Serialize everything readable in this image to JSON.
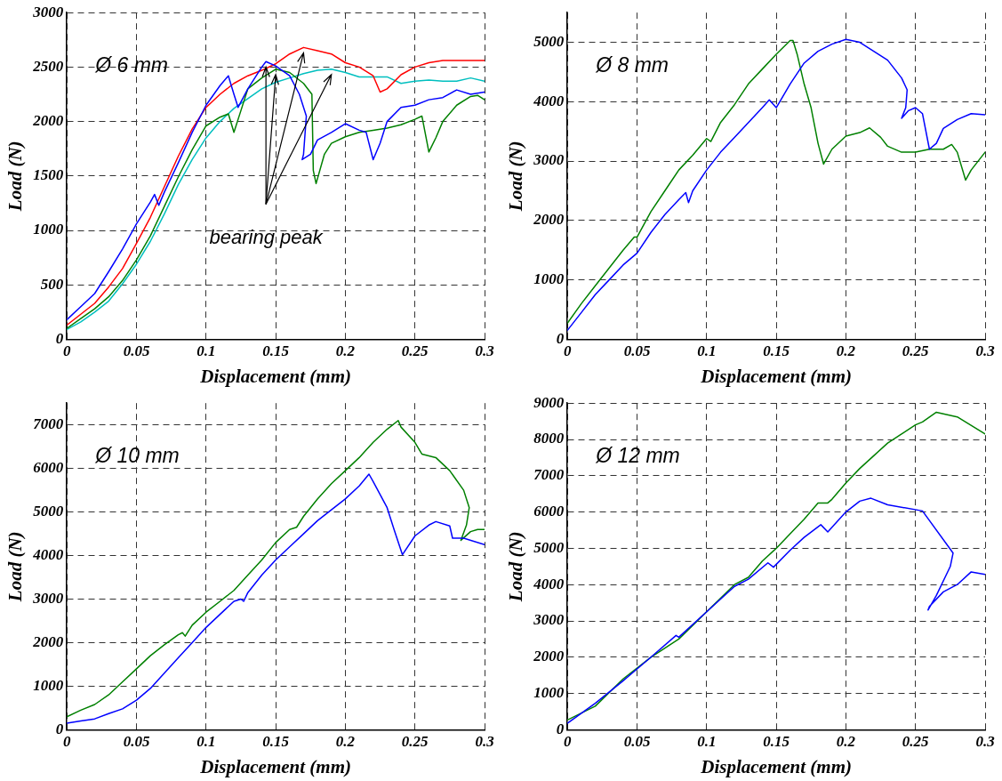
{
  "chart_data": [
    {
      "type": "line",
      "title": "Ø 6 mm",
      "xlabel": "Displacement (mm)",
      "ylabel": "Load (N)",
      "xlim": [
        0,
        0.3
      ],
      "xticks": [
        0,
        0.05,
        0.1,
        0.15,
        0.2,
        0.25,
        0.3
      ],
      "ylim": [
        0,
        3000
      ],
      "yticks": [
        0,
        500,
        1000,
        1500,
        2000,
        2500,
        3000
      ],
      "grid": true,
      "annotations": [
        {
          "text": "bearing peak",
          "x": 0.143,
          "y": 2550
        }
      ],
      "series": [
        {
          "color": "#0000ff",
          "x": [
            0,
            0.01,
            0.02,
            0.03,
            0.04,
            0.05,
            0.06,
            0.063,
            0.066,
            0.07,
            0.08,
            0.09,
            0.1,
            0.11,
            0.116,
            0.12,
            0.123,
            0.13,
            0.14,
            0.143,
            0.15,
            0.16,
            0.167,
            0.172,
            0.17,
            0.169,
            0.175,
            0.18,
            0.19,
            0.2,
            0.21,
            0.215,
            0.22,
            0.225,
            0.23,
            0.24,
            0.25,
            0.26,
            0.27,
            0.28,
            0.29,
            0.3
          ],
          "values": [
            180,
            300,
            420,
            620,
            830,
            1060,
            1260,
            1330,
            1230,
            1350,
            1620,
            1900,
            2150,
            2330,
            2420,
            2250,
            2130,
            2300,
            2500,
            2550,
            2510,
            2420,
            2250,
            2050,
            1700,
            1650,
            1700,
            1830,
            1900,
            1980,
            1920,
            1900,
            1650,
            1800,
            2000,
            2130,
            2150,
            2200,
            2220,
            2290,
            2250,
            2270
          ]
        },
        {
          "color": "#ff0000",
          "x": [
            0,
            0.01,
            0.02,
            0.03,
            0.04,
            0.05,
            0.06,
            0.07,
            0.08,
            0.09,
            0.1,
            0.11,
            0.12,
            0.13,
            0.14,
            0.15,
            0.16,
            0.17,
            0.18,
            0.19,
            0.2,
            0.21,
            0.22,
            0.225,
            0.23,
            0.24,
            0.25,
            0.26,
            0.27,
            0.28,
            0.29,
            0.3
          ],
          "values": [
            130,
            230,
            330,
            480,
            650,
            880,
            1120,
            1400,
            1680,
            1930,
            2130,
            2250,
            2350,
            2420,
            2470,
            2530,
            2620,
            2680,
            2650,
            2620,
            2540,
            2500,
            2420,
            2270,
            2300,
            2430,
            2500,
            2540,
            2560,
            2560,
            2560,
            2560
          ]
        },
        {
          "color": "#008000",
          "x": [
            0,
            0.01,
            0.02,
            0.03,
            0.04,
            0.05,
            0.06,
            0.07,
            0.08,
            0.09,
            0.1,
            0.11,
            0.116,
            0.12,
            0.125,
            0.13,
            0.14,
            0.15,
            0.16,
            0.17,
            0.176,
            0.177,
            0.179,
            0.185,
            0.19,
            0.2,
            0.21,
            0.22,
            0.23,
            0.24,
            0.25,
            0.255,
            0.26,
            0.265,
            0.27,
            0.28,
            0.29,
            0.295,
            0.3
          ],
          "values": [
            100,
            190,
            280,
            390,
            540,
            730,
            950,
            1220,
            1490,
            1740,
            1960,
            2040,
            2070,
            1900,
            2100,
            2300,
            2400,
            2480,
            2450,
            2350,
            2250,
            1550,
            1430,
            1700,
            1800,
            1860,
            1900,
            1920,
            1940,
            1970,
            2020,
            2050,
            1720,
            1850,
            2000,
            2150,
            2230,
            2240,
            2200
          ]
        },
        {
          "color": "#00bfbf",
          "x": [
            0,
            0.01,
            0.02,
            0.03,
            0.04,
            0.05,
            0.06,
            0.07,
            0.08,
            0.09,
            0.1,
            0.11,
            0.12,
            0.13,
            0.14,
            0.15,
            0.16,
            0.17,
            0.18,
            0.19,
            0.2,
            0.21,
            0.22,
            0.23,
            0.24,
            0.25,
            0.26,
            0.27,
            0.28,
            0.29,
            0.3
          ],
          "values": [
            90,
            160,
            250,
            350,
            510,
            690,
            900,
            1150,
            1420,
            1650,
            1850,
            2000,
            2120,
            2210,
            2300,
            2360,
            2400,
            2440,
            2470,
            2480,
            2450,
            2410,
            2410,
            2410,
            2350,
            2370,
            2380,
            2370,
            2370,
            2400,
            2370
          ]
        }
      ]
    },
    {
      "type": "line",
      "title": "Ø 8 mm",
      "xlabel": "Displacement (mm)",
      "ylabel": "Load (N)",
      "xlim": [
        0,
        0.3
      ],
      "xticks": [
        0,
        0.05,
        0.1,
        0.15,
        0.2,
        0.25,
        0.3
      ],
      "ylim": [
        0,
        5500
      ],
      "yticks": [
        0,
        1000,
        2000,
        3000,
        4000,
        5000
      ],
      "grid": true,
      "series": [
        {
          "color": "#0000ff",
          "x": [
            0,
            0.01,
            0.02,
            0.03,
            0.04,
            0.05,
            0.06,
            0.07,
            0.08,
            0.085,
            0.087,
            0.09,
            0.1,
            0.11,
            0.12,
            0.13,
            0.14,
            0.145,
            0.15,
            0.16,
            0.17,
            0.18,
            0.19,
            0.2,
            0.21,
            0.22,
            0.23,
            0.24,
            0.244,
            0.243,
            0.24,
            0.245,
            0.25,
            0.255,
            0.26,
            0.265,
            0.27,
            0.28,
            0.29,
            0.3
          ],
          "values": [
            150,
            450,
            750,
            1000,
            1250,
            1450,
            1800,
            2100,
            2350,
            2470,
            2300,
            2500,
            2850,
            3150,
            3400,
            3650,
            3900,
            4030,
            3900,
            4300,
            4650,
            4850,
            4970,
            5050,
            5000,
            4850,
            4700,
            4400,
            4200,
            3900,
            3720,
            3850,
            3900,
            3800,
            3200,
            3300,
            3550,
            3700,
            3800,
            3780
          ]
        },
        {
          "color": "#008000",
          "x": [
            0,
            0.01,
            0.02,
            0.03,
            0.04,
            0.048,
            0.05,
            0.06,
            0.07,
            0.08,
            0.09,
            0.1,
            0.103,
            0.11,
            0.12,
            0.13,
            0.14,
            0.15,
            0.16,
            0.162,
            0.165,
            0.17,
            0.175,
            0.18,
            0.184,
            0.19,
            0.2,
            0.21,
            0.217,
            0.225,
            0.23,
            0.24,
            0.25,
            0.26,
            0.27,
            0.276,
            0.28,
            0.286,
            0.29,
            0.3
          ],
          "values": [
            270,
            600,
            900,
            1200,
            1500,
            1720,
            1720,
            2150,
            2500,
            2850,
            3100,
            3380,
            3330,
            3650,
            3950,
            4300,
            4550,
            4800,
            5030,
            5030,
            4800,
            4300,
            3900,
            3300,
            2950,
            3200,
            3420,
            3480,
            3560,
            3400,
            3250,
            3150,
            3150,
            3200,
            3200,
            3280,
            3150,
            2680,
            2850,
            3150
          ]
        }
      ]
    },
    {
      "type": "line",
      "title": "Ø 10 mm",
      "xlabel": "Displacement (mm)",
      "ylabel": "Load (N)",
      "xlim": [
        0,
        0.3
      ],
      "xticks": [
        0,
        0.05,
        0.1,
        0.15,
        0.2,
        0.25,
        0.3
      ],
      "ylim": [
        0,
        7500
      ],
      "yticks": [
        0,
        1000,
        2000,
        3000,
        4000,
        5000,
        6000,
        7000
      ],
      "grid": true,
      "series": [
        {
          "color": "#0000ff",
          "x": [
            0,
            0.01,
            0.02,
            0.03,
            0.04,
            0.05,
            0.06,
            0.07,
            0.08,
            0.09,
            0.1,
            0.11,
            0.12,
            0.125,
            0.127,
            0.13,
            0.14,
            0.15,
            0.16,
            0.17,
            0.18,
            0.19,
            0.2,
            0.21,
            0.217,
            0.22,
            0.23,
            0.235,
            0.241,
            0.25,
            0.26,
            0.265,
            0.275,
            0.277,
            0.285,
            0.3
          ],
          "values": [
            150,
            200,
            250,
            370,
            480,
            680,
            950,
            1300,
            1650,
            2000,
            2350,
            2650,
            2950,
            3000,
            2950,
            3150,
            3550,
            3900,
            4200,
            4500,
            4800,
            5050,
            5300,
            5600,
            5870,
            5700,
            5100,
            4600,
            4020,
            4450,
            4700,
            4780,
            4680,
            4400,
            4400,
            4250
          ]
        },
        {
          "color": "#008000",
          "x": [
            0,
            0.01,
            0.02,
            0.03,
            0.04,
            0.05,
            0.06,
            0.07,
            0.08,
            0.083,
            0.085,
            0.09,
            0.1,
            0.11,
            0.12,
            0.13,
            0.14,
            0.15,
            0.16,
            0.165,
            0.17,
            0.18,
            0.19,
            0.2,
            0.21,
            0.22,
            0.23,
            0.238,
            0.24,
            0.25,
            0.255,
            0.265,
            0.275,
            0.285,
            0.289,
            0.287,
            0.283,
            0.29,
            0.295,
            0.3
          ],
          "values": [
            300,
            450,
            580,
            800,
            1100,
            1400,
            1700,
            1950,
            2180,
            2230,
            2150,
            2400,
            2700,
            2950,
            3200,
            3550,
            3900,
            4300,
            4600,
            4650,
            4900,
            5300,
            5650,
            5950,
            6250,
            6600,
            6900,
            7100,
            6950,
            6600,
            6330,
            6250,
            5950,
            5500,
            5100,
            4700,
            4350,
            4550,
            4600,
            4600
          ]
        }
      ]
    },
    {
      "type": "line",
      "title": "Ø 12 mm",
      "xlabel": "Displacement (mm)",
      "ylabel": "Load (N)",
      "xlim": [
        0,
        0.3
      ],
      "xticks": [
        0,
        0.05,
        0.1,
        0.15,
        0.2,
        0.25,
        0.3
      ],
      "ylim": [
        0,
        9000
      ],
      "yticks": [
        0,
        1000,
        2000,
        3000,
        4000,
        5000,
        6000,
        7000,
        8000,
        9000
      ],
      "grid": true,
      "series": [
        {
          "color": "#0000ff",
          "x": [
            0,
            0.02,
            0.04,
            0.06,
            0.078,
            0.08,
            0.1,
            0.12,
            0.13,
            0.144,
            0.148,
            0.16,
            0.17,
            0.182,
            0.187,
            0.2,
            0.21,
            0.218,
            0.23,
            0.255,
            0.277,
            0.275,
            0.265,
            0.259,
            0.26,
            0.27,
            0.28,
            0.29,
            0.3
          ],
          "values": [
            180,
            730,
            1350,
            2000,
            2600,
            2550,
            3250,
            3950,
            4150,
            4600,
            4480,
            4950,
            5300,
            5650,
            5450,
            6000,
            6300,
            6380,
            6200,
            6030,
            4870,
            4500,
            3700,
            3300,
            3400,
            3800,
            4000,
            4350,
            4280
          ]
        },
        {
          "color": "#008000",
          "x": [
            0,
            0.02,
            0.04,
            0.06,
            0.08,
            0.1,
            0.12,
            0.13,
            0.14,
            0.15,
            0.16,
            0.17,
            0.18,
            0.187,
            0.19,
            0.2,
            0.21,
            0.22,
            0.23,
            0.24,
            0.25,
            0.255,
            0.265,
            0.28,
            0.3
          ],
          "values": [
            270,
            650,
            1400,
            2000,
            2500,
            3250,
            4000,
            4200,
            4650,
            5000,
            5400,
            5800,
            6250,
            6250,
            6350,
            6800,
            7200,
            7550,
            7900,
            8150,
            8400,
            8480,
            8750,
            8620,
            8150
          ]
        }
      ]
    }
  ]
}
